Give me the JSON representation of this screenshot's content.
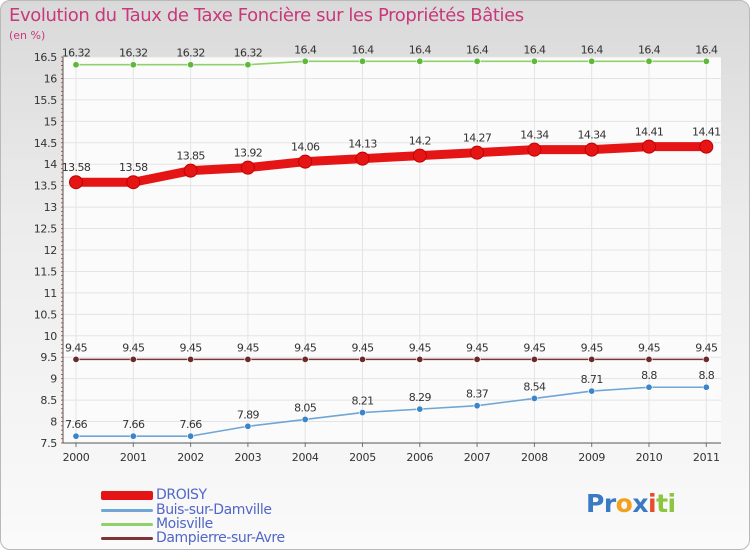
{
  "title": "Evolution du Taux de Taxe Foncière sur les Propriétés Bâties",
  "unit_label": "(en %)",
  "logo": {
    "parts": [
      {
        "text": "Pr",
        "color": "#3a7ac2"
      },
      {
        "text": "o",
        "color": "#f2a01e"
      },
      {
        "text": "x",
        "color": "#3a7ac2"
      },
      {
        "text": "i",
        "color": "#e84c2b"
      },
      {
        "text": "ti",
        "color": "#8cc63f"
      }
    ]
  },
  "chart_data": {
    "type": "line",
    "title": "Evolution du Taux de Taxe Foncière sur les Propriétés Bâties",
    "ylabel": "(en %)",
    "xlabel": "",
    "ylim": [
      7.5,
      16.5
    ],
    "y_ticks": [
      "7.5",
      "8",
      "8.5",
      "9",
      "9.5",
      "10",
      "10.5",
      "11",
      "11.5",
      "12",
      "12.5",
      "13",
      "13.5",
      "14",
      "14.5",
      "15",
      "15.5",
      "16",
      "16.5"
    ],
    "x": [
      "2000",
      "2001",
      "2002",
      "2003",
      "2004",
      "2005",
      "2006",
      "2007",
      "2008",
      "2009",
      "2010",
      "2011"
    ],
    "series": [
      {
        "name": "Moisville",
        "color": "#8fd16a",
        "marker": "#5fb83a",
        "values": [
          16.32,
          16.32,
          16.32,
          16.32,
          16.4,
          16.4,
          16.4,
          16.4,
          16.4,
          16.4,
          16.4,
          16.4
        ],
        "labels": [
          "16.32",
          "16.32",
          "16.32",
          "16.32",
          "16.4",
          "16.4",
          "16.4",
          "16.4",
          "16.4",
          "16.4",
          "16.4",
          "16.4"
        ]
      },
      {
        "name": "DROISY",
        "color": "#e61515",
        "marker": "#e61515",
        "values": [
          13.58,
          13.58,
          13.85,
          13.92,
          14.06,
          14.13,
          14.2,
          14.27,
          14.34,
          14.34,
          14.41,
          14.41
        ],
        "labels": [
          "13.58",
          "13.58",
          "13.85",
          "13.92",
          "14.06",
          "14.13",
          "14.2",
          "14.27",
          "14.34",
          "14.34",
          "14.41",
          "14.41"
        ]
      },
      {
        "name": "Dampierre-sur-Avre",
        "color": "#7a3535",
        "marker": "#6b2a2a",
        "values": [
          9.45,
          9.45,
          9.45,
          9.45,
          9.45,
          9.45,
          9.45,
          9.45,
          9.45,
          9.45,
          9.45,
          9.45
        ],
        "labels": [
          "9.45",
          "9.45",
          "9.45",
          "9.45",
          "9.45",
          "9.45",
          "9.45",
          "9.45",
          "9.45",
          "9.45",
          "9.45",
          "9.45"
        ]
      },
      {
        "name": "Buis-sur-Damville",
        "color": "#6fa6d6",
        "marker": "#3a86c8",
        "values": [
          7.66,
          7.66,
          7.66,
          7.89,
          8.05,
          8.21,
          8.29,
          8.37,
          8.54,
          8.71,
          8.8,
          8.8
        ],
        "labels": [
          "7.66",
          "7.66",
          "7.66",
          "7.89",
          "8.05",
          "8.21",
          "8.29",
          "8.37",
          "8.54",
          "8.71",
          "8.8",
          "8.8"
        ]
      }
    ],
    "legend": [
      {
        "name": "DROISY",
        "color": "#e61515"
      },
      {
        "name": "Buis-sur-Damville",
        "color": "#6fa6d6"
      },
      {
        "name": "Moisville",
        "color": "#8fd16a"
      },
      {
        "name": "Dampierre-sur-Avre",
        "color": "#7a3535"
      }
    ],
    "legend_position": "bottom-left"
  }
}
